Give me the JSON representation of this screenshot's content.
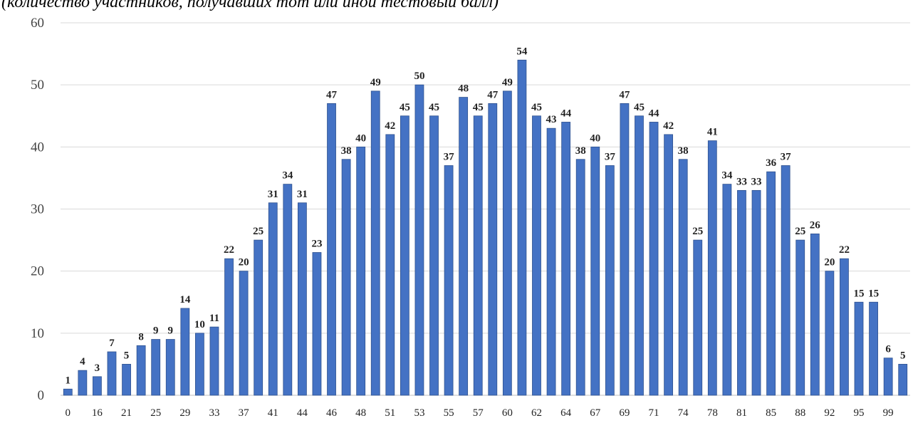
{
  "caption": "(количество участников, получавших тот или иной тестовый балл)",
  "chart_data": {
    "type": "bar",
    "title": "",
    "xlabel": "",
    "ylabel": "",
    "ylim": [
      0,
      60
    ],
    "yticks": [
      0,
      10,
      20,
      30,
      40,
      50,
      60
    ],
    "grid": true,
    "bar_color": "#4472c4",
    "x_tick_labels": [
      "0",
      "16",
      "21",
      "25",
      "29",
      "33",
      "37",
      "41",
      "44",
      "46",
      "48",
      "51",
      "53",
      "55",
      "57",
      "60",
      "62",
      "64",
      "67",
      "69",
      "71",
      "74",
      "78",
      "81",
      "85",
      "88",
      "92",
      "95",
      "99"
    ],
    "values": [
      1,
      4,
      3,
      7,
      5,
      8,
      9,
      9,
      14,
      10,
      11,
      22,
      20,
      25,
      31,
      34,
      31,
      23,
      47,
      38,
      40,
      49,
      42,
      45,
      50,
      45,
      37,
      48,
      45,
      47,
      49,
      54,
      45,
      43,
      44,
      38,
      40,
      37,
      47,
      45,
      44,
      42,
      38,
      25,
      41,
      34,
      33,
      33,
      36,
      37,
      25,
      26,
      20,
      22,
      15,
      15,
      6,
      5
    ]
  }
}
